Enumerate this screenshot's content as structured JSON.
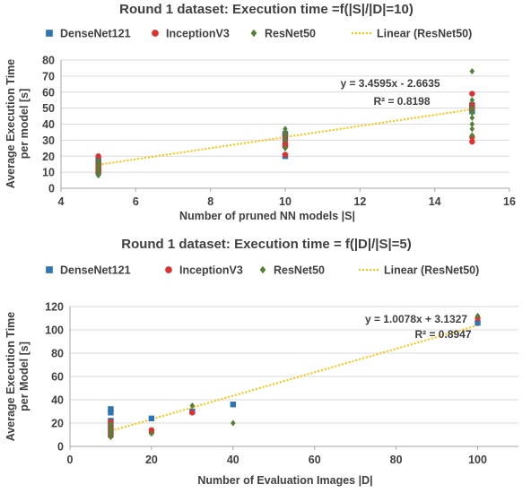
{
  "chart_data": [
    {
      "type": "scatter",
      "title": "Round 1 dataset: Execution time =f(|S|/|D|=10)",
      "xlabel": "Number of pruned NN models |S|",
      "ylabel_lines": [
        "Average Execution Time",
        "per model [s]"
      ],
      "xlim": [
        4,
        16
      ],
      "ylim": [
        0,
        80
      ],
      "xticks": [
        4,
        6,
        8,
        10,
        12,
        14,
        16
      ],
      "yticks": [
        0,
        10,
        20,
        30,
        40,
        50,
        60,
        70,
        80
      ],
      "grid": true,
      "legend_position": "top",
      "series": [
        {
          "name": "DenseNet121",
          "marker": "square",
          "color": "#2e75b6",
          "points": [
            [
              5,
              10
            ],
            [
              5,
              12
            ],
            [
              5,
              14
            ],
            [
              5,
              16
            ],
            [
              5,
              18
            ],
            [
              10,
              20
            ],
            [
              10,
              27
            ],
            [
              10,
              32
            ],
            [
              10,
              34
            ],
            [
              15,
              48
            ],
            [
              15,
              50
            ],
            [
              15,
              52
            ]
          ]
        },
        {
          "name": "InceptionV3",
          "marker": "circle",
          "color": "#e03030",
          "points": [
            [
              5,
              10
            ],
            [
              5,
              11
            ],
            [
              5,
              12
            ],
            [
              5,
              13
            ],
            [
              5,
              14
            ],
            [
              5,
              16
            ],
            [
              5,
              20
            ],
            [
              10,
              21
            ],
            [
              10,
              26
            ],
            [
              10,
              28
            ],
            [
              10,
              30
            ],
            [
              10,
              33
            ],
            [
              15,
              29
            ],
            [
              15,
              32
            ],
            [
              15,
              50
            ],
            [
              15,
              52
            ],
            [
              15,
              59
            ]
          ]
        },
        {
          "name": "ResNet50",
          "marker": "diamond",
          "color": "#548235",
          "points": [
            [
              5,
              8
            ],
            [
              5,
              9
            ],
            [
              5,
              11
            ],
            [
              5,
              13
            ],
            [
              5,
              15
            ],
            [
              5,
              17
            ],
            [
              10,
              25
            ],
            [
              10,
              30
            ],
            [
              10,
              33
            ],
            [
              10,
              35
            ],
            [
              10,
              37
            ],
            [
              15,
              33
            ],
            [
              15,
              37
            ],
            [
              15,
              40
            ],
            [
              15,
              44
            ],
            [
              15,
              47
            ],
            [
              15,
              50
            ],
            [
              15,
              55
            ],
            [
              15,
              73
            ]
          ]
        }
      ],
      "trendline": {
        "name": "Linear (ResNet50)",
        "color": "#ffc000",
        "slope": 3.4595,
        "intercept": -2.6635,
        "x_range": [
          5,
          15
        ]
      },
      "equation": "y = 3.4595x - 2.6635",
      "r2": "R² = 0.8198"
    },
    {
      "type": "scatter",
      "title": "Round 1 dataset: Execution time = f(|D|/|S|=5)",
      "xlabel": "Number of Evaluation Images |D|",
      "ylabel_lines": [
        "Average Execution Time",
        "per Model [s]"
      ],
      "xlim": [
        0,
        110
      ],
      "ylim": [
        0,
        120
      ],
      "xticks": [
        0,
        20,
        40,
        60,
        80,
        100
      ],
      "yticks": [
        0,
        20,
        40,
        60,
        80,
        100,
        120
      ],
      "grid": true,
      "legend_position": "top",
      "series": [
        {
          "name": "DenseNet121",
          "marker": "square",
          "color": "#2e75b6",
          "points": [
            [
              10,
              10
            ],
            [
              10,
              14
            ],
            [
              10,
              18
            ],
            [
              10,
              22
            ],
            [
              10,
              29
            ],
            [
              10,
              32
            ],
            [
              20,
              24
            ],
            [
              30,
              30
            ],
            [
              40,
              36
            ],
            [
              100,
              106
            ]
          ]
        },
        {
          "name": "InceptionV3",
          "marker": "circle",
          "color": "#e03030",
          "points": [
            [
              10,
              9
            ],
            [
              10,
              12
            ],
            [
              10,
              15
            ],
            [
              10,
              18
            ],
            [
              10,
              21
            ],
            [
              20,
              12
            ],
            [
              20,
              14
            ],
            [
              30,
              29
            ],
            [
              100,
              110
            ]
          ]
        },
        {
          "name": "ResNet50",
          "marker": "diamond",
          "color": "#548235",
          "points": [
            [
              10,
              8
            ],
            [
              10,
              11
            ],
            [
              10,
              13
            ],
            [
              10,
              16
            ],
            [
              10,
              19
            ],
            [
              20,
              11
            ],
            [
              30,
              35
            ],
            [
              40,
              20
            ],
            [
              100,
              112
            ]
          ]
        }
      ],
      "trendline": {
        "name": "Linear (ResNet50)",
        "color": "#ffc000",
        "slope": 1.0078,
        "intercept": 3.1327,
        "x_range": [
          10,
          100
        ]
      },
      "equation": "y = 1.0078x + 3.1327",
      "r2": "R² = 0.8947"
    }
  ]
}
